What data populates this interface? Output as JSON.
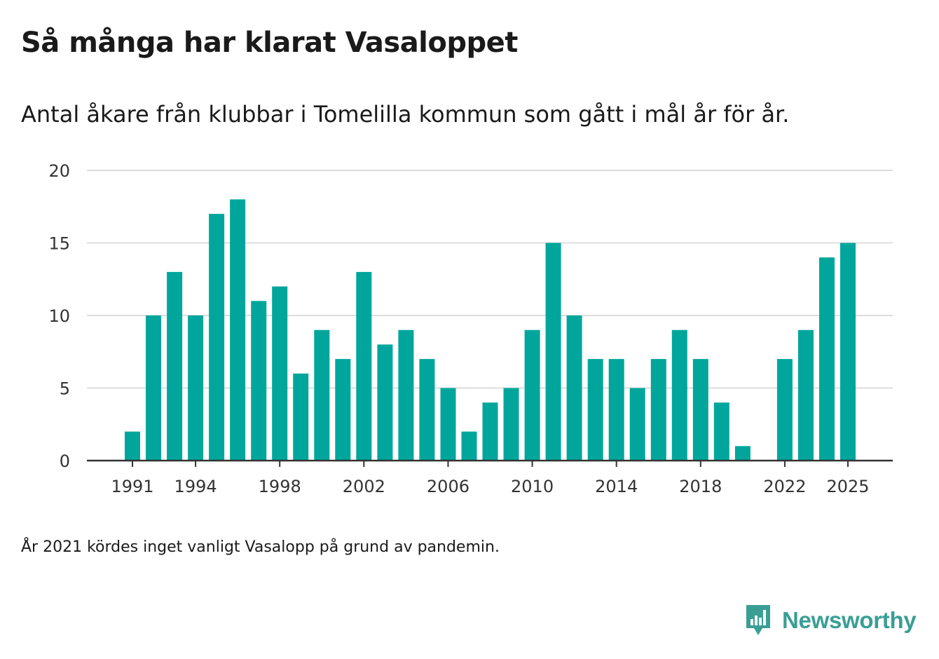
{
  "title": "Så många har klarat Vasaloppet",
  "subtitle": "Antal åkare från klubbar i Tomelilla kommun som gått i mål år för år.",
  "note": "År 2021 kördes inget vanligt Vasalopp på grund av pandemin.",
  "brand": {
    "name": "Newsworthy",
    "icon": "newsworthy-logo-icon",
    "color": "#3a9e95"
  },
  "colors": {
    "bar": "#00a69c",
    "grid": "#dddddd",
    "axis": "#333333"
  },
  "chart_data": {
    "type": "bar",
    "title": "Så många har klarat Vasaloppet",
    "xlabel": "",
    "ylabel": "",
    "ylim": [
      0,
      20
    ],
    "yticks": [
      0,
      5,
      10,
      15,
      20
    ],
    "xticks": [
      1991,
      1994,
      1998,
      2002,
      2006,
      2010,
      2014,
      2018,
      2022,
      2025
    ],
    "grid": true,
    "categories": [
      1991,
      1992,
      1993,
      1994,
      1995,
      1996,
      1997,
      1998,
      1999,
      2000,
      2001,
      2002,
      2003,
      2004,
      2005,
      2006,
      2007,
      2008,
      2009,
      2010,
      2011,
      2012,
      2013,
      2014,
      2015,
      2016,
      2017,
      2018,
      2019,
      2020,
      2021,
      2022,
      2023,
      2024,
      2025
    ],
    "values": [
      2,
      10,
      13,
      10,
      17,
      18,
      11,
      12,
      6,
      9,
      7,
      13,
      8,
      9,
      7,
      5,
      2,
      4,
      5,
      9,
      15,
      10,
      7,
      7,
      5,
      7,
      9,
      7,
      4,
      1,
      null,
      7,
      9,
      14,
      15
    ]
  }
}
